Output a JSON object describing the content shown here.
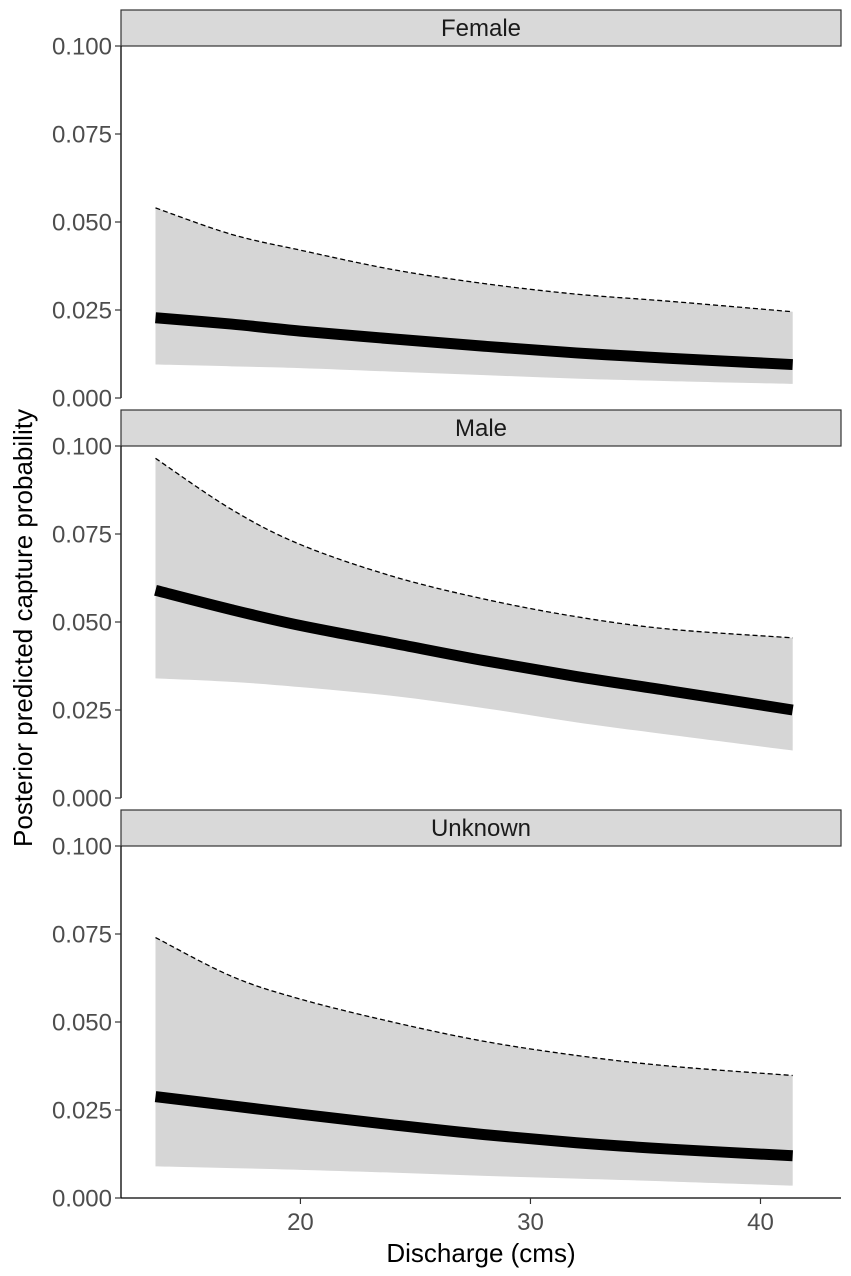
{
  "chart_data": {
    "type": "area",
    "xlabel": "Discharge (cms)",
    "ylabel": "Posterior predicted capture probability",
    "xlim": [
      12.2,
      43.5
    ],
    "ylim": [
      0,
      0.1
    ],
    "x_ticks": [
      20,
      30,
      40
    ],
    "x_tick_labels": [
      "20",
      "30",
      "40"
    ],
    "y_ticks": [
      0,
      0.025,
      0.05,
      0.075,
      0.1
    ],
    "y_tick_labels": [
      "0.000",
      "0.025",
      "0.050",
      "0.075",
      "0.100"
    ],
    "grid": false,
    "legend": "none",
    "ribbon_color": "#d6d6d6",
    "line_color": "#000000",
    "x": [
      13.7,
      17,
      20,
      24,
      28,
      32,
      36,
      41.4
    ],
    "panels": [
      {
        "name": "Female",
        "median": [
          0.0228,
          0.021,
          0.019,
          0.0168,
          0.0147,
          0.0128,
          0.0113,
          0.0095
        ],
        "upper": [
          0.054,
          0.0465,
          0.042,
          0.0365,
          0.0325,
          0.0295,
          0.0275,
          0.0245
        ],
        "lower": [
          0.0095,
          0.009,
          0.0085,
          0.0075,
          0.0065,
          0.0055,
          0.0048,
          0.004
        ]
      },
      {
        "name": "Male",
        "median": [
          0.059,
          0.0535,
          0.049,
          0.044,
          0.039,
          0.0345,
          0.0305,
          0.025
        ],
        "upper": [
          0.0965,
          0.082,
          0.072,
          0.063,
          0.0565,
          0.0515,
          0.048,
          0.0455
        ],
        "lower": [
          0.034,
          0.033,
          0.0315,
          0.029,
          0.0255,
          0.0215,
          0.018,
          0.0135
        ]
      },
      {
        "name": "Unknown",
        "median": [
          0.0288,
          0.0262,
          0.0238,
          0.0208,
          0.018,
          0.0157,
          0.0139,
          0.012
        ],
        "upper": [
          0.074,
          0.063,
          0.0565,
          0.05,
          0.0445,
          0.0405,
          0.0375,
          0.0348
        ],
        "lower": [
          0.009,
          0.0085,
          0.008,
          0.0072,
          0.0063,
          0.0055,
          0.0047,
          0.0035
        ]
      }
    ]
  }
}
